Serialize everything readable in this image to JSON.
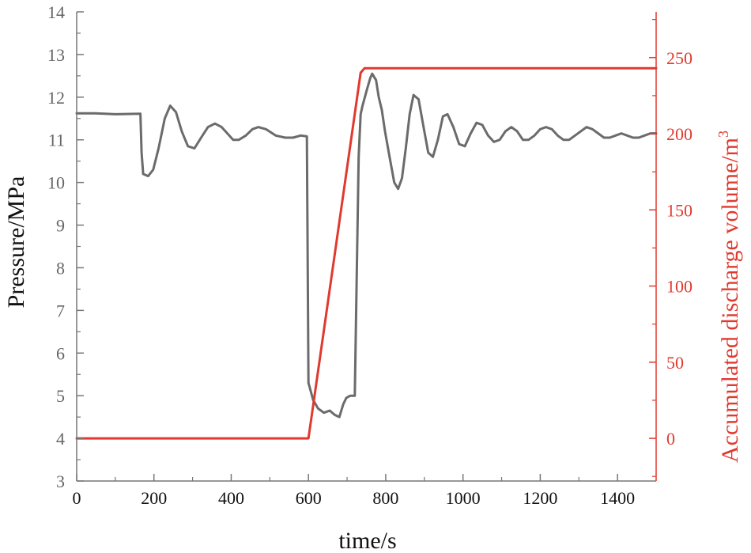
{
  "chart_data": {
    "type": "line",
    "xlabel": "time/s",
    "ylabel_left": "Pressure/MPa",
    "ylabel_right": "Accumulated discharge volume/m",
    "ylabel_right_superscript": "3",
    "xlim": [
      0,
      1500
    ],
    "ylim_left": [
      3,
      14
    ],
    "ylim_right": [
      -28,
      280
    ],
    "x_ticks": [
      "0",
      "200",
      "400",
      "600",
      "800",
      "1000",
      "1200",
      "1400"
    ],
    "y_left_ticks": [
      "3",
      "4",
      "5",
      "6",
      "7",
      "8",
      "9",
      "10",
      "11",
      "12",
      "13",
      "14"
    ],
    "y_right_ticks": [
      "0",
      "50",
      "100",
      "150",
      "200",
      "250"
    ],
    "colors": {
      "pressure": "#6b6b6b",
      "volume": "#e03a2f",
      "axis_left": "#777777",
      "axis_right": "#e03a2f"
    },
    "series": [
      {
        "name": "Pressure",
        "axis": "left",
        "color": "#6b6b6b",
        "x": [
          0,
          50,
          100,
          165,
          168,
          172,
          185,
          198,
          212,
          228,
          242,
          257,
          272,
          288,
          305,
          322,
          340,
          358,
          375,
          390,
          405,
          420,
          438,
          455,
          470,
          490,
          515,
          540,
          560,
          580,
          596,
          600,
          603,
          612,
          625,
          640,
          655,
          668,
          680,
          690,
          698,
          708,
          720,
          730,
          735,
          740,
          752,
          760,
          765,
          775,
          782,
          790,
          798,
          810,
          822,
          832,
          842,
          852,
          862,
          872,
          885,
          898,
          910,
          922,
          935,
          948,
          960,
          975,
          990,
          1005,
          1020,
          1035,
          1050,
          1065,
          1080,
          1095,
          1110,
          1125,
          1140,
          1155,
          1170,
          1185,
          1200,
          1215,
          1230,
          1245,
          1260,
          1275,
          1290,
          1305,
          1320,
          1335,
          1350,
          1365,
          1380,
          1395,
          1410,
          1425,
          1440,
          1455,
          1470,
          1485,
          1500
        ],
        "values": [
          11.62,
          11.62,
          11.6,
          11.61,
          10.7,
          10.2,
          10.15,
          10.3,
          10.8,
          11.5,
          11.8,
          11.65,
          11.2,
          10.85,
          10.8,
          11.05,
          11.3,
          11.38,
          11.3,
          11.15,
          11.0,
          11.0,
          11.1,
          11.25,
          11.3,
          11.25,
          11.1,
          11.05,
          11.05,
          11.1,
          11.08,
          5.3,
          5.2,
          4.9,
          4.7,
          4.6,
          4.65,
          4.55,
          4.5,
          4.8,
          4.95,
          5.0,
          5.0,
          10.6,
          11.6,
          11.8,
          12.2,
          12.45,
          12.55,
          12.4,
          12.0,
          11.7,
          11.2,
          10.6,
          10.0,
          9.85,
          10.1,
          10.8,
          11.6,
          12.05,
          11.95,
          11.3,
          10.7,
          10.6,
          11.0,
          11.55,
          11.6,
          11.3,
          10.9,
          10.85,
          11.15,
          11.4,
          11.35,
          11.1,
          10.95,
          11.0,
          11.2,
          11.3,
          11.2,
          11.0,
          11.0,
          11.1,
          11.25,
          11.3,
          11.25,
          11.1,
          11.0,
          11.0,
          11.1,
          11.2,
          11.3,
          11.25,
          11.15,
          11.05,
          11.05,
          11.1,
          11.15,
          11.1,
          11.05,
          11.05,
          11.1,
          11.15,
          11.15
        ]
      },
      {
        "name": "Accumulated discharge volume",
        "axis": "right",
        "color": "#e03a2f",
        "x": [
          0,
          600,
          735,
          745,
          1500
        ],
        "values": [
          0,
          0,
          240,
          243,
          243
        ]
      }
    ]
  }
}
